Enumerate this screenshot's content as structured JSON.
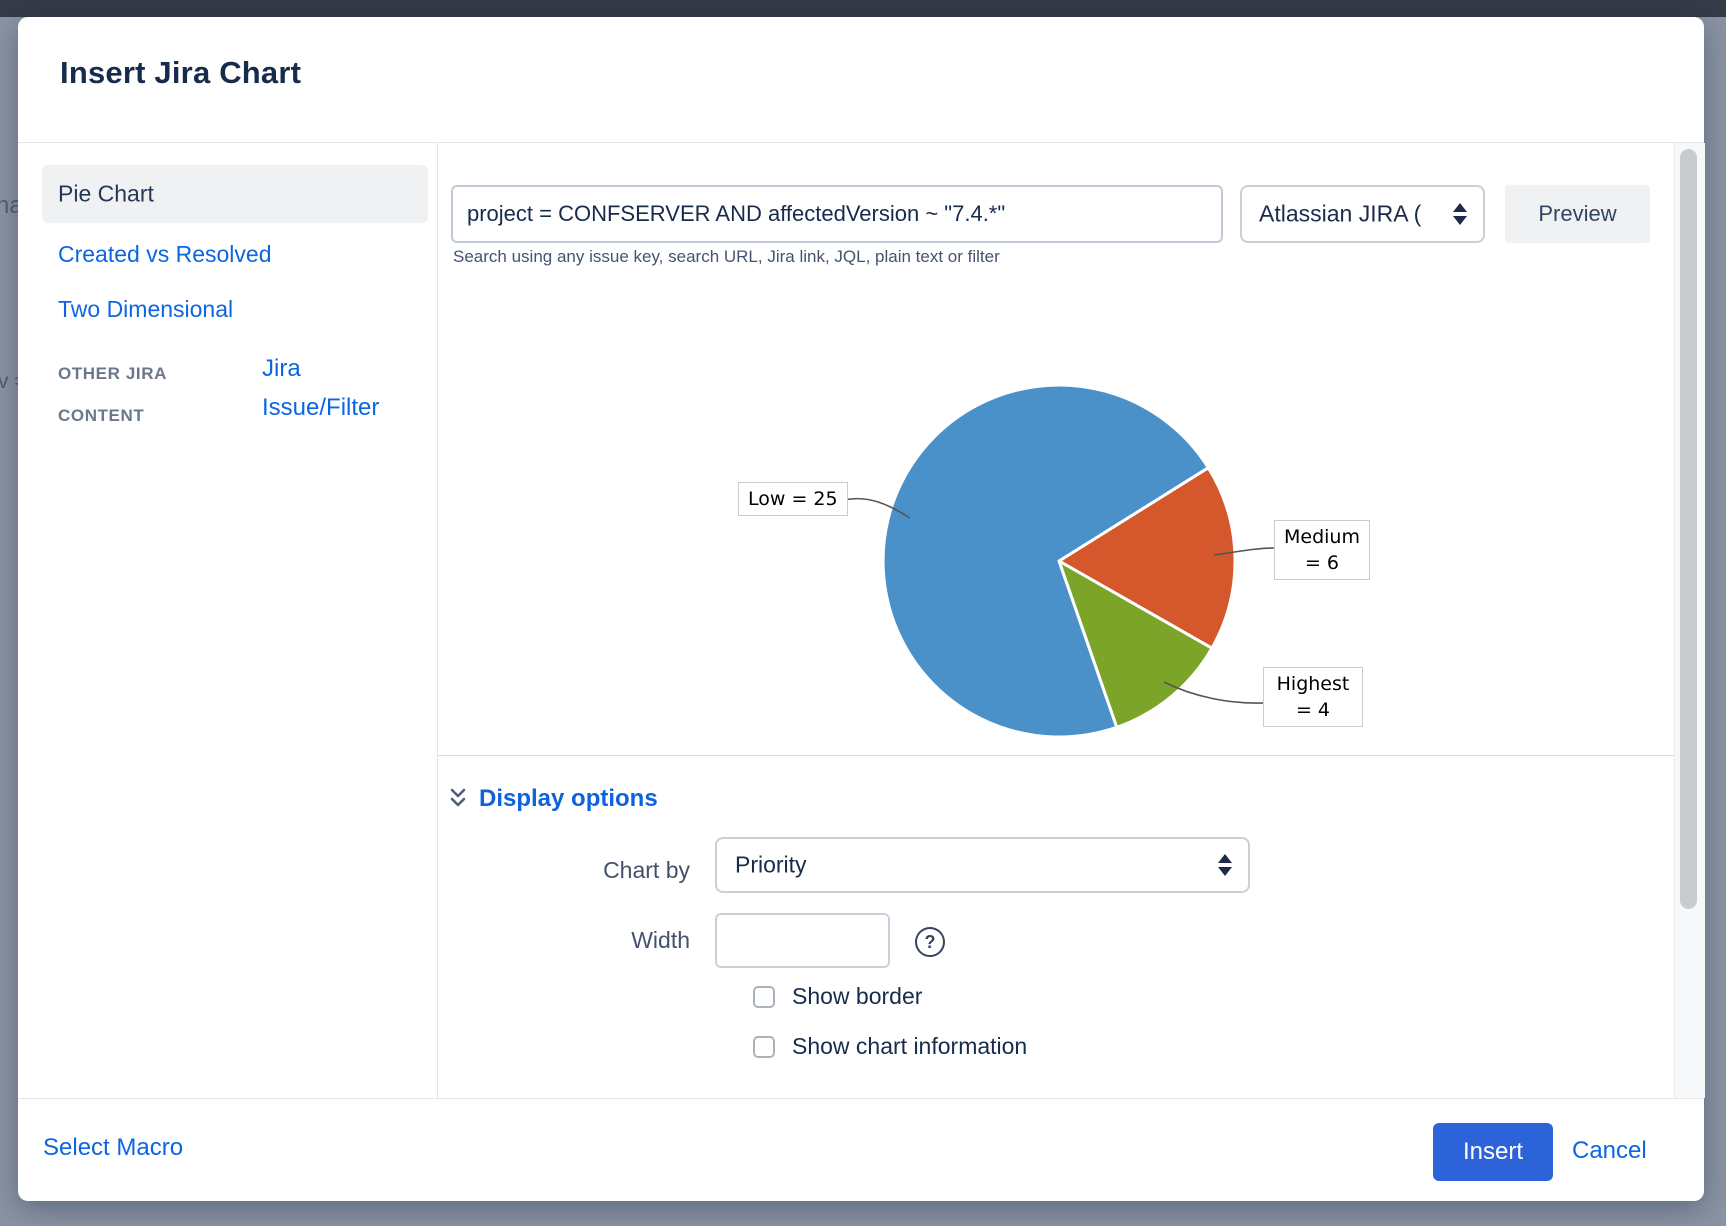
{
  "dialog": {
    "title": "Insert Jira Chart",
    "sidebar": {
      "items": [
        {
          "label": "Pie Chart",
          "selected": true
        },
        {
          "label": "Created vs Resolved",
          "selected": false
        },
        {
          "label": "Two Dimensional",
          "selected": false
        }
      ],
      "section_label": "OTHER JIRA CONTENT",
      "section_link": "Jira Issue/Filter"
    },
    "search": {
      "query": "project = CONFSERVER AND affectedVersion ~ \"7.4.*\"",
      "help_text": "Search using any issue key, search URL, Jira link, JQL, plain text or filter",
      "server_select_value": "Atlassian JIRA (",
      "preview_label": "Preview"
    },
    "display_options": {
      "header": "Display options",
      "chart_by_label": "Chart by",
      "chart_by_value": "Priority",
      "width_label": "Width",
      "width_value": "",
      "help_glyph": "?",
      "checkboxes": [
        {
          "label": "Show border",
          "checked": false
        },
        {
          "label": "Show chart information",
          "checked": false
        }
      ]
    },
    "footer": {
      "select_macro": "Select Macro",
      "insert": "Insert",
      "cancel": "Cancel"
    }
  },
  "chart_data": {
    "type": "pie",
    "title": "",
    "categories": [
      "Low",
      "Medium",
      "Highest"
    ],
    "values": [
      25,
      6,
      4
    ],
    "total": 35,
    "colors": [
      "#4a90c9",
      "#d4582c",
      "#7ba428"
    ],
    "annotations": [
      "Low = 25",
      "Medium\n= 6",
      "Highest\n= 4"
    ],
    "legend": "none",
    "render": {
      "order": [
        1,
        2,
        0
      ],
      "start_angle_deg": 58,
      "direction": "clockwise"
    }
  },
  "background": {
    "fragments": [
      "ha",
      "v ="
    ]
  }
}
